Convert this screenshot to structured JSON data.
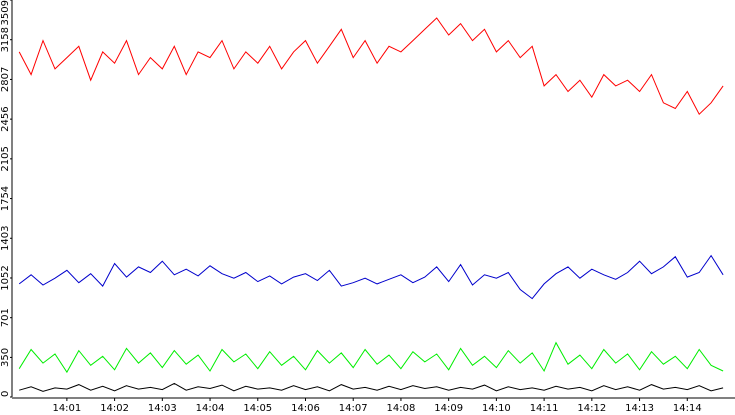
{
  "chart_data": {
    "type": "line",
    "x": [
      0,
      0.25,
      0.5,
      0.75,
      1,
      1.25,
      1.5,
      1.75,
      2,
      2.25,
      2.5,
      2.75,
      3,
      3.25,
      3.5,
      3.75,
      4,
      4.25,
      4.5,
      4.75,
      5,
      5.25,
      5.5,
      5.75,
      6,
      6.25,
      6.5,
      6.75,
      7,
      7.25,
      7.5,
      7.75,
      8,
      8.25,
      8.5,
      8.75,
      9,
      9.25,
      9.5,
      9.75,
      10,
      10.25,
      10.5,
      10.75,
      11,
      11.25,
      11.5,
      11.75,
      12,
      12.25,
      12.5,
      12.75,
      13,
      13.25,
      13.5,
      13.75,
      14,
      14.25,
      14.5,
      14.75
    ],
    "xlim": [
      -0.15,
      15.0
    ],
    "xticks": [
      {
        "value": 1,
        "label": "14:01"
      },
      {
        "value": 2,
        "label": "14:02"
      },
      {
        "value": 3,
        "label": "14:03"
      },
      {
        "value": 4,
        "label": "14:04"
      },
      {
        "value": 5,
        "label": "14:05"
      },
      {
        "value": 6,
        "label": "14:06"
      },
      {
        "value": 7,
        "label": "14:07"
      },
      {
        "value": 8,
        "label": "14:08"
      },
      {
        "value": 9,
        "label": "14:09"
      },
      {
        "value": 10,
        "label": "14:10"
      },
      {
        "value": 11,
        "label": "14:11"
      },
      {
        "value": 12,
        "label": "14:12"
      },
      {
        "value": 13,
        "label": "14:13"
      },
      {
        "value": 14,
        "label": "14:14"
      }
    ],
    "ylim": [
      0,
      3509
    ],
    "yticks": [
      0,
      350,
      701,
      1052,
      1403,
      1754,
      2105,
      2456,
      2807,
      3158,
      3509
    ],
    "series": [
      {
        "color": "#ff0000",
        "values": [
          3050,
          2850,
          3150,
          2900,
          3000,
          3100,
          2800,
          3050,
          2950,
          3150,
          2850,
          3000,
          2900,
          3100,
          2850,
          3050,
          3000,
          3150,
          2900,
          3050,
          2950,
          3100,
          2900,
          3050,
          3150,
          2950,
          3100,
          3250,
          3000,
          3150,
          2950,
          3100,
          3050,
          3150,
          3250,
          3350,
          3200,
          3300,
          3150,
          3250,
          3050,
          3150,
          3000,
          3100,
          2750,
          2850,
          2700,
          2800,
          2650,
          2850,
          2750,
          2800,
          2700,
          2850,
          2600,
          2550,
          2700,
          2500,
          2600,
          2750
        ]
      },
      {
        "color": "#0000cc",
        "values": [
          1000,
          1080,
          990,
          1050,
          1120,
          1010,
          1090,
          980,
          1180,
          1060,
          1150,
          1100,
          1200,
          1080,
          1130,
          1070,
          1160,
          1090,
          1050,
          1100,
          1020,
          1070,
          1000,
          1060,
          1090,
          1030,
          1120,
          980,
          1010,
          1050,
          1000,
          1040,
          1080,
          1010,
          1060,
          1150,
          1020,
          1170,
          990,
          1080,
          1050,
          1100,
          950,
          870,
          1000,
          1090,
          1150,
          1050,
          1130,
          1080,
          1040,
          1100,
          1200,
          1090,
          1150,
          1240,
          1060,
          1100,
          1250,
          1080
        ]
      },
      {
        "color": "#00ee00",
        "values": [
          250,
          420,
          300,
          380,
          220,
          410,
          280,
          360,
          240,
          430,
          300,
          390,
          260,
          410,
          290,
          370,
          230,
          420,
          310,
          380,
          250,
          400,
          280,
          360,
          240,
          410,
          300,
          390,
          260,
          420,
          290,
          370,
          250,
          400,
          310,
          380,
          240,
          430,
          280,
          360,
          260,
          410,
          300,
          390,
          230,
          480,
          290,
          370,
          250,
          420,
          300,
          380,
          240,
          400,
          290,
          360,
          250,
          420,
          280,
          230
        ]
      },
      {
        "color": "#000000",
        "values": [
          60,
          90,
          50,
          80,
          70,
          110,
          60,
          95,
          55,
          100,
          70,
          85,
          65,
          120,
          60,
          90,
          75,
          105,
          55,
          95,
          70,
          80,
          60,
          100,
          65,
          90,
          55,
          110,
          70,
          85,
          60,
          95,
          65,
          100,
          75,
          90,
          60,
          85,
          70,
          105,
          55,
          90,
          65,
          80,
          60,
          95,
          70,
          85,
          55,
          100,
          65,
          90,
          60,
          110,
          70,
          85,
          65,
          100,
          55,
          80
        ]
      }
    ]
  }
}
